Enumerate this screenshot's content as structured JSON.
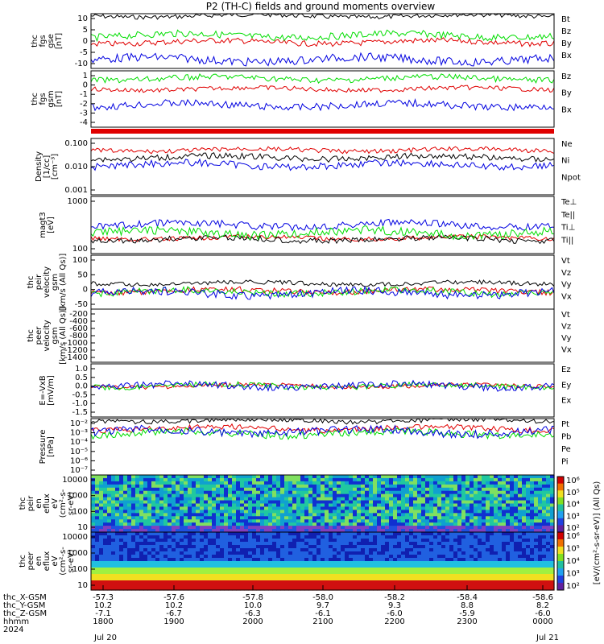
{
  "title": "P2 (TH-C) fields and ground moments overview",
  "colors": {
    "black": "#000000",
    "red": "#e00000",
    "green": "#00dd00",
    "blue": "#0000e0"
  },
  "colorbar": {
    "labels": [
      "10²",
      "10³",
      "10⁴",
      "10⁵",
      "10⁶"
    ],
    "unit": "[eV/(cm²-s-sr-eV)] (All Qs)"
  },
  "xaxis": {
    "ticks": [
      "1800",
      "1900",
      "2000",
      "2100",
      "2200",
      "2300",
      "0000"
    ],
    "row_labels": [
      "thc_X-GSM",
      "thc_Y-GSM",
      "thc_Z-GSM",
      "hhmm",
      "2024"
    ],
    "rows": [
      [
        "-57.3",
        "-57.6",
        "-57.8",
        "-58.0",
        "-58.2",
        "-58.4",
        "-58.6"
      ],
      [
        "10.2",
        "10.2",
        "10.0",
        "9.7",
        "9.3",
        "8.8",
        "8.2"
      ],
      [
        "-7.1",
        "-6.7",
        "-6.3",
        "-6.1",
        "-6.0",
        "-5.9",
        "-6.0"
      ],
      [
        "1800",
        "1900",
        "2000",
        "2100",
        "2200",
        "2300",
        "0000"
      ]
    ],
    "dates": [
      "Jul 20",
      "Jul 21"
    ]
  },
  "chart_data": [
    {
      "type": "line",
      "ylabel": "thc\nfgs\ngse\n[nT]",
      "ticks": [
        "10",
        "5",
        "0",
        "-5",
        "-10"
      ],
      "ylim": [
        -13,
        12
      ],
      "series": [
        {
          "name": "Bt",
          "color": "black",
          "level": 11
        },
        {
          "name": "Bz",
          "color": "red",
          "level": -1
        },
        {
          "name": "By",
          "color": "green",
          "level": 2
        },
        {
          "name": "Bx",
          "color": "blue",
          "level": -9
        }
      ]
    },
    {
      "type": "line",
      "ylabel": "thc\nfgs\ngsm\n[nT]",
      "ticks": [
        "1",
        "0",
        "-1",
        "-2",
        "-3",
        "-4"
      ],
      "ylim": [
        -4.5,
        1.4
      ],
      "series": [
        {
          "name": "Bz",
          "color": "red",
          "level": -0.5
        },
        {
          "name": "By",
          "color": "green",
          "level": 0.6
        },
        {
          "name": "Bx",
          "color": "blue",
          "level": -2.2
        }
      ]
    },
    {
      "type": "line",
      "ylabel": "Density\n[1/cc]\n[cm⁻³]",
      "ticks": [
        "0.100",
        "0.010",
        "0.001"
      ],
      "ylim": [
        0.0005,
        0.3
      ],
      "log": true,
      "series": [
        {
          "name": "Ne",
          "color": "red",
          "level": 0.08
        },
        {
          "name": "Ni",
          "color": "black",
          "level": 0.035
        },
        {
          "name": "Npot",
          "color": "blue",
          "level": 0.015
        }
      ]
    },
    {
      "type": "line",
      "ylabel": "magt3\n[eV]",
      "ticks": [
        "1000",
        "100"
      ],
      "ylim": [
        20,
        5000
      ],
      "log": true,
      "series": [
        {
          "name": "Te⊥",
          "color": "red",
          "level": 90
        },
        {
          "name": "Te||",
          "color": "black",
          "level": 80
        },
        {
          "name": "Ti⊥",
          "color": "blue",
          "level": 320
        },
        {
          "name": "Ti||",
          "color": "green",
          "level": 150
        }
      ]
    },
    {
      "type": "line",
      "ylabel": "thc\npeir\nvelocity\ngsm\n[km/s (All Qs)]",
      "ticks": [
        "100",
        "50",
        "0",
        "-50"
      ],
      "ylim": [
        -70,
        150
      ],
      "series": [
        {
          "name": "Vt",
          "color": "black",
          "level": 35
        },
        {
          "name": "Vz",
          "color": "red",
          "level": 5
        },
        {
          "name": "Vy",
          "color": "green",
          "level": 0
        },
        {
          "name": "Vx",
          "color": "blue",
          "level": -5
        }
      ]
    },
    {
      "type": "line",
      "ylabel": "thc\npeer\nvelocity\ngsm\n[km/s (All Qs)]",
      "ticks": [
        "-200",
        "-400",
        "-600",
        "-800",
        "-1000",
        "-1200",
        "-1400"
      ],
      "ylim": [
        -1450,
        -100
      ],
      "series": [
        {
          "name": "Vt",
          "color": "black"
        },
        {
          "name": "Vz",
          "color": "red"
        },
        {
          "name": "Vy",
          "color": "green"
        },
        {
          "name": "Vx",
          "color": "blue"
        }
      ]
    },
    {
      "type": "line",
      "ylabel": "E=-VxB\n[mV/m]",
      "ticks": [
        "1.0",
        "0.5",
        "0.0",
        "-0.5",
        "-1.0",
        "-1.5"
      ],
      "ylim": [
        -1.7,
        1.2
      ],
      "series": [
        {
          "name": "Ez",
          "color": "red",
          "level": 0
        },
        {
          "name": "Ey",
          "color": "green",
          "level": 0
        },
        {
          "name": "Ex",
          "color": "blue",
          "level": 0
        }
      ]
    },
    {
      "type": "line",
      "ylabel": "Pressure\n[nPa]",
      "ticks": [
        "10⁻²",
        "10⁻³",
        "10⁻⁴",
        "10⁻⁵",
        "10⁻⁶",
        "10⁻⁷"
      ],
      "ylim": [
        -7.3,
        -1.6
      ],
      "log": true,
      "series": [
        {
          "name": "Pt",
          "color": "black",
          "level": -1.8
        },
        {
          "name": "Pb",
          "color": "red",
          "level": -2.6
        },
        {
          "name": "Pe",
          "color": "green",
          "level": -3.1
        },
        {
          "name": "Pi",
          "color": "blue",
          "level": -2.9
        }
      ]
    },
    {
      "type": "heatmap",
      "ylabel": "thc\npeir\nen\neflux\neV\n(cm²-s-\nsr-eV)",
      "ticks": [
        "10000",
        "1000",
        "100",
        "10"
      ],
      "ylim": [
        5,
        30000
      ],
      "log": true
    },
    {
      "type": "heatmap",
      "ylabel": "thc\npeer\nen\neflux\neV\n(cm²-s-\nsr-eV)",
      "ticks": [
        "10000",
        "1000",
        "100",
        "10"
      ],
      "ylim": [
        5,
        30000
      ],
      "log": true
    }
  ]
}
